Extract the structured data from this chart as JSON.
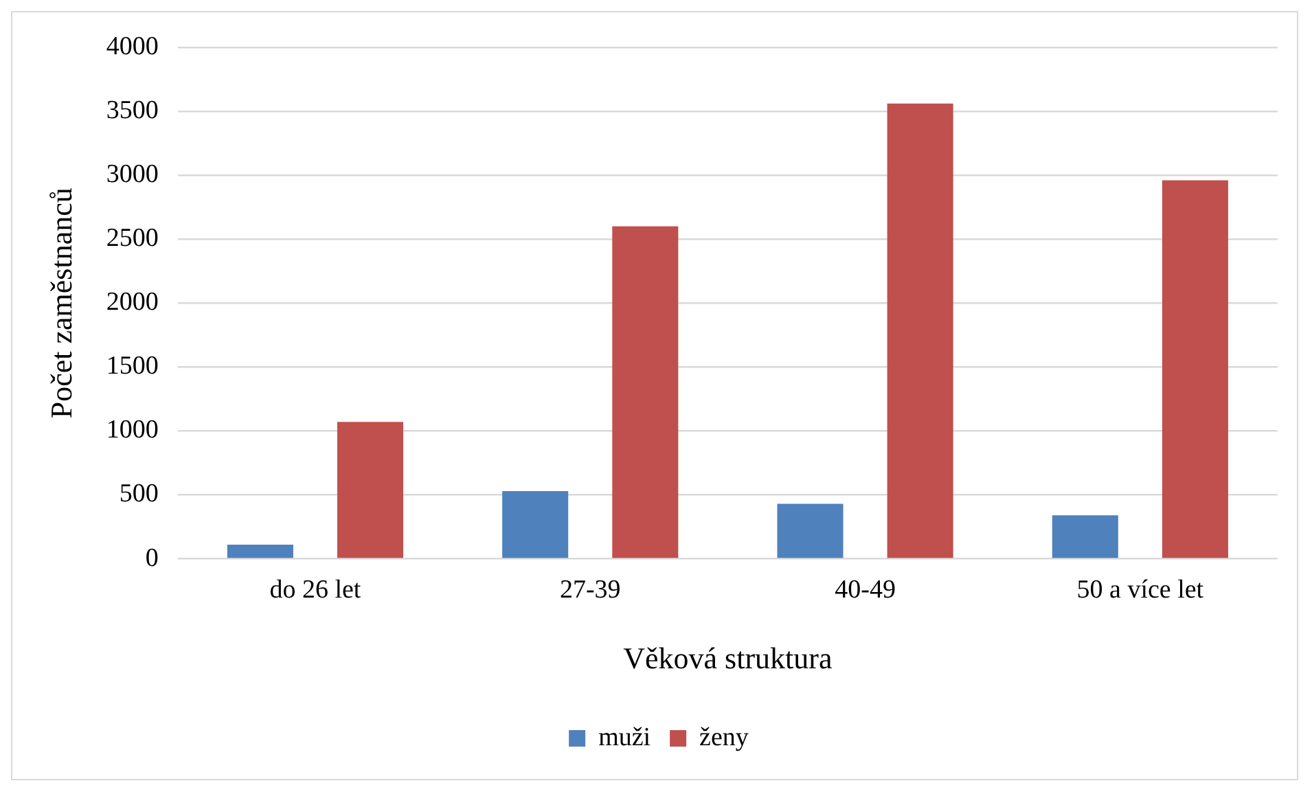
{
  "chart_data": {
    "type": "bar",
    "xlabel": "Věková struktura",
    "ylabel": "Počet zaměstnanců",
    "categories": [
      "do 26 let",
      "27-39",
      "40-49",
      "50 a více let"
    ],
    "series": [
      {
        "name": "muži",
        "color": "#4f81bd",
        "values": [
          110,
          530,
          430,
          340
        ]
      },
      {
        "name": "ženy",
        "color": "#c0504d",
        "values": [
          1070,
          2600,
          3560,
          2960
        ]
      }
    ],
    "ylim": [
      0,
      4000
    ],
    "yticks": [
      0,
      500,
      1000,
      1500,
      2000,
      2500,
      3000,
      3500,
      4000
    ],
    "grid": "y",
    "legend": "bottom"
  }
}
